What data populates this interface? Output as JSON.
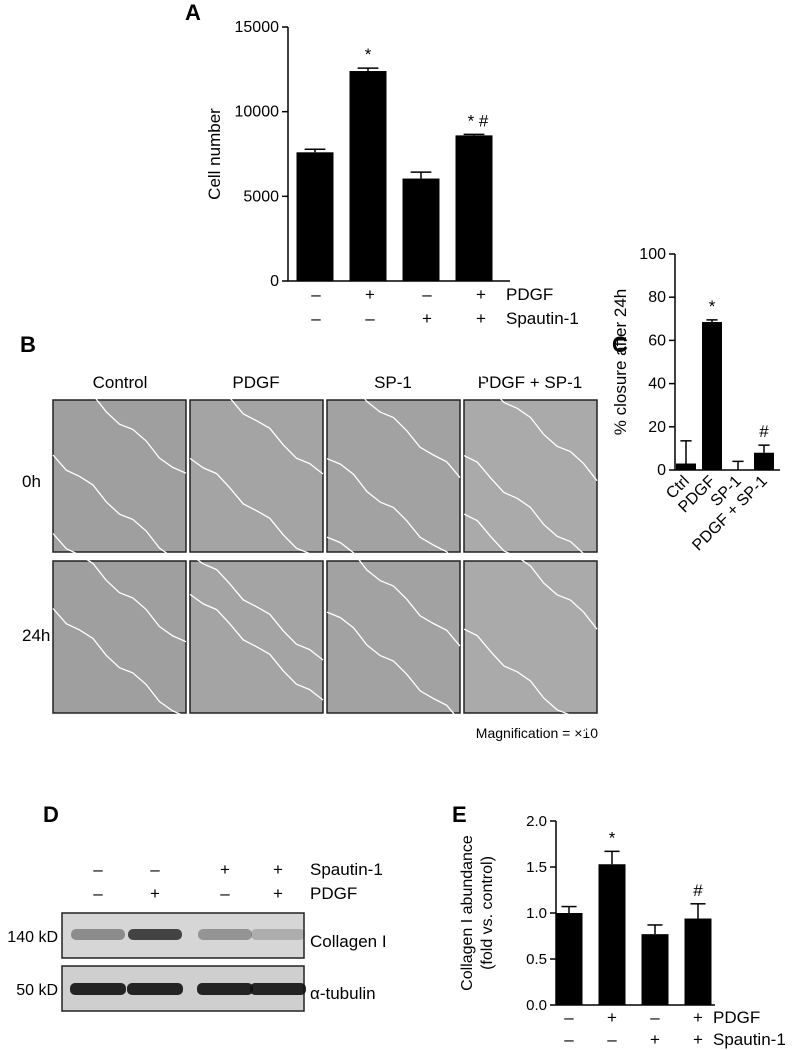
{
  "panels": {
    "A": {
      "letter": "A",
      "treatment_labels": [
        "PDGF",
        "Spautin-1"
      ],
      "treatment_rows": [
        [
          "–",
          "+",
          "–",
          "+"
        ],
        [
          "–",
          "–",
          "+",
          "+"
        ]
      ]
    },
    "B": {
      "letter": "B",
      "column_labels": [
        "Control",
        "PDGF",
        "SP-1",
        "PDGF + SP-1"
      ],
      "row_labels": [
        "0h",
        "24h"
      ],
      "magnification": "Magnification = ×10"
    },
    "C": {
      "letter": "C"
    },
    "D": {
      "letter": "D",
      "treatment_labels": [
        "Spautin-1",
        "PDGF"
      ],
      "treatment_rows": [
        [
          "–",
          "–",
          "+",
          "+"
        ],
        [
          "–",
          "+",
          "–",
          "+"
        ]
      ],
      "bands": [
        {
          "mw": "140 kD",
          "name": "Collagen I"
        },
        {
          "mw": "50 kD",
          "name": "α-tubulin"
        }
      ]
    },
    "E": {
      "letter": "E",
      "treatment_labels": [
        "PDGF",
        "Spautin-1"
      ],
      "treatment_rows": [
        [
          "–",
          "+",
          "–",
          "+"
        ],
        [
          "–",
          "–",
          "+",
          "+"
        ]
      ]
    }
  },
  "chart_data": [
    {
      "id": "A",
      "type": "bar",
      "categories": [
        "Control",
        "PDGF",
        "Spautin-1",
        "PDGF + Spautin-1"
      ],
      "values": [
        7600,
        12400,
        6050,
        8600
      ],
      "errors": [
        180,
        170,
        380,
        60
      ],
      "annotations": [
        "",
        "*",
        "",
        "* #"
      ],
      "ylabel": "Cell number",
      "ylim": [
        0,
        15000
      ],
      "yticks": [
        0,
        5000,
        10000,
        15000
      ],
      "color": "#000000"
    },
    {
      "id": "C",
      "type": "bar",
      "categories": [
        "Ctrl",
        "PDGF",
        "SP-1",
        "PDGF + SP-1"
      ],
      "values": [
        3,
        68.5,
        0,
        8
      ],
      "errors": [
        10.5,
        1,
        4,
        3.5
      ],
      "annotations": [
        "",
        "*",
        "",
        "#"
      ],
      "ylabel": "% closure after 24h",
      "ylim": [
        0,
        100
      ],
      "yticks": [
        0,
        20,
        40,
        60,
        80,
        100
      ],
      "color": "#000000"
    },
    {
      "id": "E",
      "type": "bar",
      "categories": [
        "Control",
        "PDGF",
        "Spautin-1",
        "PDGF + Spautin-1"
      ],
      "values": [
        1.0,
        1.53,
        0.77,
        0.94
      ],
      "errors": [
        0.07,
        0.14,
        0.1,
        0.16
      ],
      "annotations": [
        "",
        "*",
        "",
        "#"
      ],
      "ylabel": "Collagen I abundance",
      "ylabel2": "(fold vs. control)",
      "ylim": [
        0,
        2.0
      ],
      "yticks": [
        "0.0",
        "0.5",
        "1.0",
        "1.5",
        "2.0"
      ],
      "color": "#000000"
    }
  ]
}
